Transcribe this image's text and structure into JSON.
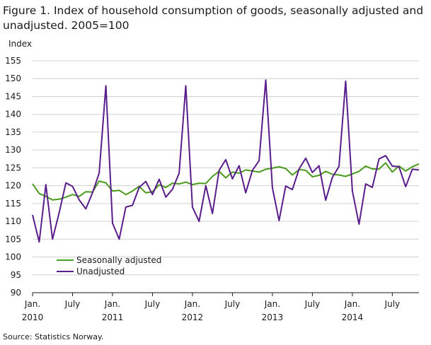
{
  "chart_data": {
    "type": "line",
    "title": "Figure 1. Index of household consumption of goods, seasonally adjusted and unadjusted. 2005=100",
    "ylabel": "Index",
    "xlabel": "",
    "ylim": [
      90,
      155
    ],
    "yticks": [
      90,
      95,
      100,
      105,
      110,
      115,
      120,
      125,
      130,
      135,
      140,
      145,
      150,
      155
    ],
    "x_tick_labels": [
      {
        "label": "Jan.",
        "sub": "2010",
        "month_index": 0
      },
      {
        "label": "July",
        "sub": "",
        "month_index": 6
      },
      {
        "label": "Jan.",
        "sub": "2011",
        "month_index": 12
      },
      {
        "label": "July",
        "sub": "",
        "month_index": 18
      },
      {
        "label": "Jan.",
        "sub": "2012",
        "month_index": 24
      },
      {
        "label": "July",
        "sub": "",
        "month_index": 30
      },
      {
        "label": "Jan.",
        "sub": "2013",
        "month_index": 36
      },
      {
        "label": "July",
        "sub": "",
        "month_index": 42
      },
      {
        "label": "Jan.",
        "sub": "2014",
        "month_index": 48
      },
      {
        "label": "July",
        "sub": "",
        "month_index": 54
      }
    ],
    "x_months": [
      "2010-01",
      "2010-02",
      "2010-03",
      "2010-04",
      "2010-05",
      "2010-06",
      "2010-07",
      "2010-08",
      "2010-09",
      "2010-10",
      "2010-11",
      "2010-12",
      "2011-01",
      "2011-02",
      "2011-03",
      "2011-04",
      "2011-05",
      "2011-06",
      "2011-07",
      "2011-08",
      "2011-09",
      "2011-10",
      "2011-11",
      "2011-12",
      "2012-01",
      "2012-02",
      "2012-03",
      "2012-04",
      "2012-05",
      "2012-06",
      "2012-07",
      "2012-08",
      "2012-09",
      "2012-10",
      "2012-11",
      "2012-12",
      "2013-01",
      "2013-02",
      "2013-03",
      "2013-04",
      "2013-05",
      "2013-06",
      "2013-07",
      "2013-08",
      "2013-09",
      "2013-10",
      "2013-11",
      "2013-12",
      "2014-01",
      "2014-02",
      "2014-03",
      "2014-04",
      "2014-05",
      "2014-06",
      "2014-07",
      "2014-08",
      "2014-09",
      "2014-10",
      "2014-11"
    ],
    "grid": true,
    "legend_position": "bottom-left",
    "series": [
      {
        "name": "Seasonally adjusted",
        "color": "#4a9a1c",
        "values": [
          120.5,
          117.8,
          117.0,
          116.0,
          116.2,
          116.8,
          117.5,
          117.0,
          118.3,
          118.2,
          121.3,
          120.8,
          118.5,
          118.7,
          117.5,
          118.5,
          119.8,
          118.0,
          118.3,
          120.2,
          119.5,
          120.7,
          120.5,
          121.0,
          120.3,
          120.7,
          120.6,
          122.6,
          124.0,
          122.2,
          123.8,
          123.5,
          124.4,
          124.1,
          123.8,
          124.6,
          124.9,
          125.3,
          124.8,
          123.0,
          124.5,
          124.3,
          122.5,
          122.9,
          124.0,
          123.2,
          123.0,
          122.6,
          123.3,
          124.0,
          125.5,
          124.7,
          124.6,
          126.4,
          123.8,
          125.5,
          124.1,
          125.3,
          126.1
        ]
      },
      {
        "name": "Unadjusted",
        "color": "#5a1d8c",
        "values": [
          111.8,
          104.2,
          120.3,
          105.0,
          112.5,
          120.8,
          119.8,
          116.0,
          113.5,
          118.0,
          123.5,
          148.0,
          109.5,
          105.0,
          114.0,
          114.5,
          119.5,
          121.2,
          117.5,
          121.8,
          116.8,
          119.0,
          123.5,
          148.0,
          114.0,
          110.0,
          120.0,
          112.2,
          124.3,
          127.3,
          121.9,
          125.6,
          118.0,
          124.3,
          127.0,
          149.6,
          119.4,
          110.2,
          119.9,
          118.9,
          124.7,
          127.7,
          123.7,
          125.6,
          115.9,
          122.3,
          125.4,
          149.3,
          118.5,
          109.2,
          120.5,
          119.5,
          127.5,
          128.4,
          125.5,
          125.3,
          119.7,
          124.6,
          124.4
        ]
      }
    ],
    "source": "Source: Statistics Norway."
  }
}
